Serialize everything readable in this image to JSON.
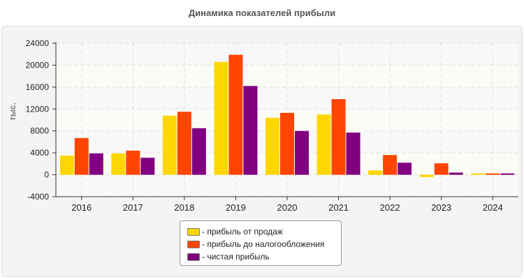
{
  "chart_data": {
    "type": "bar",
    "title": "Динамика показателей прибыли",
    "ylabel": "тыс.",
    "xlabel": "",
    "categories": [
      "2016",
      "2017",
      "2018",
      "2019",
      "2020",
      "2021",
      "2022",
      "2023",
      "2024"
    ],
    "ylim": [
      -4000,
      24000
    ],
    "yticks": [
      -4000,
      0,
      4000,
      8000,
      12000,
      16000,
      20000,
      24000
    ],
    "grid": true,
    "legend_position": "bottom",
    "series": [
      {
        "name": "- прибыль от продаж",
        "color": "#FFD700",
        "values": [
          3500,
          3900,
          10800,
          20600,
          10400,
          11000,
          800,
          -400,
          250
        ]
      },
      {
        "name": "- прибыль до налогообложения",
        "color": "#FF4500",
        "values": [
          6700,
          4400,
          11500,
          21900,
          11300,
          13800,
          3600,
          2100,
          250
        ]
      },
      {
        "name": "- чистая прибыль",
        "color": "#800080",
        "values": [
          3900,
          3100,
          8500,
          16200,
          8000,
          7700,
          2200,
          400,
          250
        ]
      }
    ]
  }
}
